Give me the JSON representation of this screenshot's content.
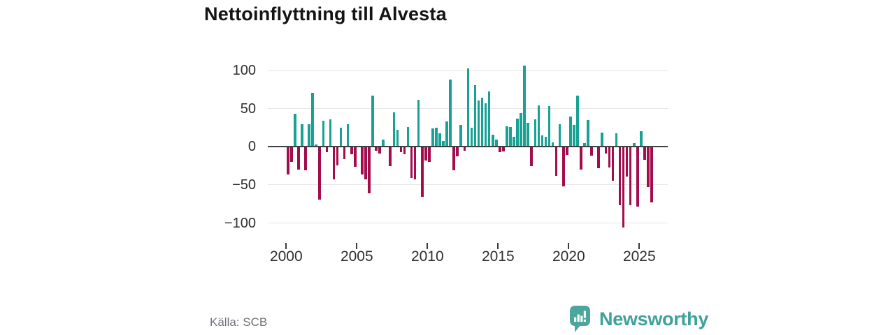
{
  "title": "Nettoinflyttning till Alvesta",
  "source": "Källa: SCB",
  "branding": {
    "logo_text": "Newsworthy"
  },
  "colors": {
    "positive": "#17a294",
    "negative": "#a30d4d",
    "axis": "#3d4043",
    "grid": "#e5e6e7",
    "tick_label": "#2e2e2e",
    "source_text": "#6e7177",
    "brand": "#3ea29a"
  },
  "chart_data": {
    "type": "bar",
    "title": "Nettoinflyttning till Alvesta",
    "xlabel": "",
    "ylabel": "",
    "frequency": "quarterly",
    "start": "2000Q1",
    "end": "2025Q4",
    "x_tick_labels": [
      "2000",
      "2005",
      "2010",
      "2015",
      "2020",
      "2025"
    ],
    "y_ticks": [
      100,
      50,
      0,
      -50,
      -100
    ],
    "y_tick_labels": [
      "100",
      "50",
      "0",
      "−50",
      "−100"
    ],
    "ylim": [
      -115,
      110
    ],
    "grid": true,
    "legend": false,
    "values": [
      -36,
      -20,
      43,
      -30,
      30,
      -31,
      30,
      71,
      3,
      -69,
      34,
      -7,
      36,
      -43,
      -24,
      25,
      -16,
      30,
      -10,
      -26,
      0,
      -36,
      -43,
      -61,
      67,
      -5,
      -9,
      9,
      0,
      -25,
      45,
      22,
      -7,
      -10,
      26,
      -41,
      -43,
      62,
      -66,
      -18,
      -20,
      24,
      25,
      18,
      8,
      33,
      88,
      -31,
      -13,
      29,
      -5,
      103,
      25,
      81,
      61,
      64,
      57,
      73,
      16,
      9,
      -7,
      -6,
      27,
      26,
      13,
      37,
      44,
      106,
      31,
      -25,
      36,
      54,
      15,
      13,
      53,
      6,
      -38,
      30,
      -52,
      -11,
      40,
      29,
      67,
      -30,
      5,
      35,
      -12,
      0,
      -28,
      19,
      -9,
      -27,
      -45,
      18,
      -77,
      -106,
      -39,
      -77,
      5,
      -78,
      20,
      -17,
      -53,
      -73
    ]
  }
}
